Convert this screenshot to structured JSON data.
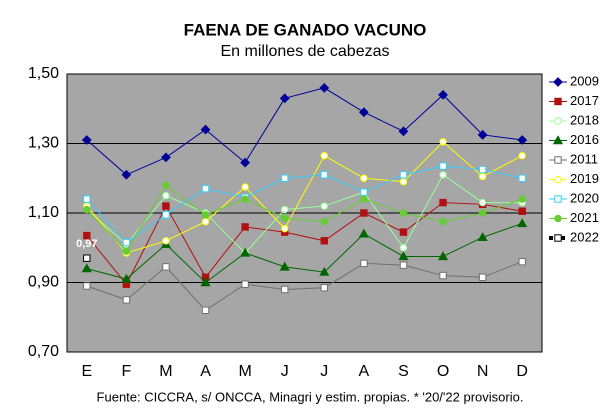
{
  "chart_data": {
    "type": "line",
    "title": "FAENA DE GANADO VACUNO",
    "subtitle": "En millones de cabezas",
    "source": "Fuente: CICCRA, s/ ONCCA, Minagri y estim. propias. * '20/'22 provisorio.",
    "categories": [
      "E",
      "F",
      "M",
      "A",
      "M",
      "J",
      "J",
      "A",
      "S",
      "O",
      "N",
      "D"
    ],
    "ylim": [
      0.7,
      1.5
    ],
    "yticks": [
      {
        "value": 0.7,
        "label": "0,70"
      },
      {
        "value": 0.9,
        "label": "0,90"
      },
      {
        "value": 1.1,
        "label": "1,10"
      },
      {
        "value": 1.3,
        "label": "1,30"
      },
      {
        "value": 1.5,
        "label": "1,50"
      }
    ],
    "grid": true,
    "legend": "right",
    "series": [
      {
        "name": "2009",
        "color": "#000099",
        "marker": "diamond",
        "values": [
          1.31,
          1.21,
          1.26,
          1.34,
          1.245,
          1.43,
          1.46,
          1.39,
          1.335,
          1.44,
          1.325,
          1.31
        ]
      },
      {
        "name": "2017",
        "color": "#b01010",
        "marker": "square",
        "values": [
          1.035,
          0.895,
          1.12,
          0.915,
          1.06,
          1.045,
          1.02,
          1.1,
          1.045,
          1.13,
          1.125,
          1.105
        ]
      },
      {
        "name": "2018",
        "color": "#99ff99",
        "marker": "circle-open",
        "values": [
          1.11,
          1.01,
          1.15,
          1.1,
          0.985,
          1.11,
          1.12,
          1.16,
          1.0,
          1.21,
          1.13,
          1.13
        ]
      },
      {
        "name": "2016",
        "color": "#006600",
        "marker": "triangle",
        "values": [
          0.94,
          0.91,
          1.01,
          0.9,
          0.985,
          0.945,
          0.93,
          1.04,
          0.975,
          0.975,
          1.03,
          1.07
        ]
      },
      {
        "name": "2011",
        "color": "#707070",
        "marker": "square-open",
        "values": [
          0.89,
          0.85,
          0.945,
          0.82,
          0.895,
          0.88,
          0.885,
          0.955,
          0.95,
          0.92,
          0.915,
          0.96
        ]
      },
      {
        "name": "2019",
        "color": "#ffff00",
        "marker": "circle-open",
        "values": [
          1.12,
          0.985,
          1.02,
          1.075,
          1.175,
          1.055,
          1.265,
          1.2,
          1.19,
          1.305,
          1.205,
          1.265
        ]
      },
      {
        "name": "2020",
        "color": "#33ccff",
        "marker": "square-open",
        "values": [
          1.14,
          1.015,
          1.095,
          1.17,
          1.145,
          1.2,
          1.21,
          1.16,
          1.21,
          1.235,
          1.225,
          1.2
        ]
      },
      {
        "name": "2021",
        "color": "#66cc33",
        "marker": "circle",
        "values": [
          1.11,
          0.99,
          1.18,
          1.095,
          1.14,
          1.085,
          1.075,
          1.14,
          1.1,
          1.075,
          1.1,
          1.14
        ]
      },
      {
        "name": "2022",
        "color": "#000000",
        "marker": "square-open",
        "values": [
          0.97,
          null,
          null,
          null,
          null,
          null,
          null,
          null,
          null,
          null,
          null,
          null
        ],
        "value_labels": [
          "0,97",
          null,
          null,
          null,
          null,
          null,
          null,
          null,
          null,
          null,
          null,
          null
        ]
      }
    ]
  }
}
